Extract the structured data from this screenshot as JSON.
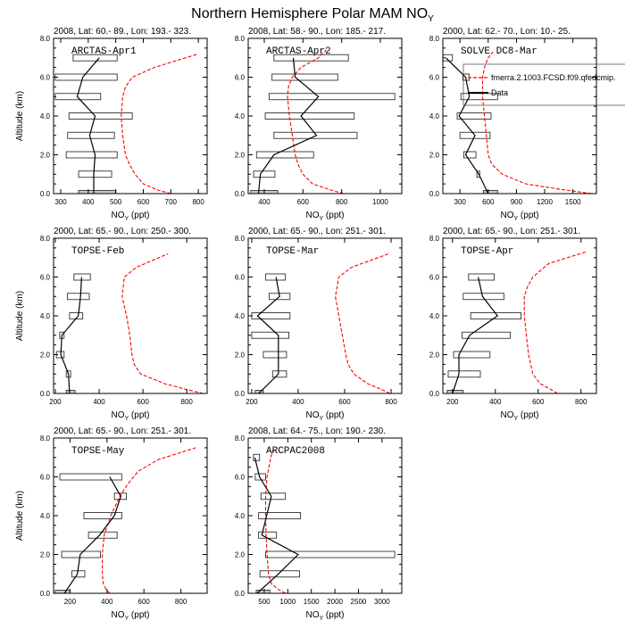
{
  "title": "Northern Hemisphere Polar MAM NO",
  "title_sub": "Y",
  "colors": {
    "model": "#ff0000",
    "data": "#000000",
    "box_bottom": "#c8c8c8"
  },
  "chart_data": [
    {
      "type": "line",
      "subtitle": "2008, Lat:  60.- 89., Lon: 193.- 323.",
      "label": "ARCTAS-Apr1",
      "xlabel": "NO",
      "xlabel_sub": "Y",
      "xlabel_unit": " (ppt)",
      "ylabel": "Altitude (km)",
      "xlim": [
        274,
        832
      ],
      "ylim": [
        0,
        8
      ],
      "xticks": [
        300,
        400,
        500,
        600,
        700,
        800
      ],
      "yticks": [
        "0.0",
        "2.0",
        "4.0",
        "6.0",
        "8.0"
      ],
      "model": {
        "alt": [
          0,
          0.2,
          0.5,
          1,
          1.5,
          2,
          3,
          4,
          5,
          5.5,
          6,
          6.5,
          7.2
        ],
        "value": [
          700,
          650,
          600,
          570,
          550,
          535,
          525,
          520,
          525,
          535,
          560,
          640,
          800
        ]
      },
      "obs": {
        "alt": [
          0,
          1,
          2,
          3,
          4,
          5,
          6,
          7
        ],
        "median": [
          420,
          420,
          425,
          405,
          425,
          360,
          380,
          440
        ],
        "low": [
          365,
          365,
          320,
          325,
          330,
          280,
          280,
          345
        ],
        "high": [
          500,
          485,
          505,
          495,
          560,
          445,
          505,
          505
        ]
      }
    },
    {
      "type": "line",
      "subtitle": "2008, Lat:  58.- 90., Lon: 185.- 217.",
      "label": "ARCTAS-Apr2",
      "xlabel": "NO",
      "xlabel_sub": "Y",
      "xlabel_unit": " (ppt)",
      "ylabel": "",
      "xlim": [
        317,
        1111
      ],
      "ylim": [
        0,
        8
      ],
      "xticks": [
        400,
        600,
        800,
        1000
      ],
      "yticks": [
        "0.0",
        "2.0",
        "4.0",
        "6.0",
        "8.0"
      ],
      "model": {
        "alt": [
          0,
          0.2,
          0.5,
          1,
          1.5,
          2,
          3,
          4,
          5,
          5.5,
          6,
          6.5,
          7,
          7.4
        ],
        "value": [
          810,
          740,
          650,
          600,
          575,
          560,
          545,
          530,
          520,
          525,
          545,
          590,
          680,
          720
        ]
      },
      "obs": {
        "alt": [
          0,
          1,
          2,
          3,
          4,
          5,
          6,
          7
        ],
        "median": [
          370,
          380,
          450,
          670,
          590,
          680,
          560,
          550
        ],
        "low": [
          330,
          345,
          360,
          450,
          405,
          425,
          440,
          450
        ],
        "high": [
          470,
          455,
          655,
          880,
          865,
          1075,
          780,
          835
        ]
      }
    },
    {
      "type": "line",
      "subtitle": "2000, Lat: 62.- 70., Lon: 10.- 25.",
      "label": "SOLVE DC8-Mar",
      "xlabel": "NO",
      "xlabel_sub": "Y",
      "xlabel_unit": " (ppt)",
      "ylabel": "",
      "xlim": [
        118,
        1750
      ],
      "ylim": [
        0,
        8
      ],
      "xticks": [
        300,
        600,
        900,
        1200,
        1500
      ],
      "yticks": [
        "0.0",
        "2.0",
        "4.0",
        "6.0",
        "8.0"
      ],
      "model": {
        "alt": [
          0,
          0.2,
          0.5,
          1,
          1.5,
          2,
          3,
          4,
          5,
          6,
          6.5,
          7,
          7.3
        ],
        "value": [
          1700,
          1400,
          1000,
          750,
          640,
          600,
          580,
          560,
          540,
          540,
          560,
          600,
          650
        ]
      },
      "obs": {
        "alt": [
          0,
          1,
          2,
          3,
          4,
          5,
          6,
          7
        ],
        "median": [
          600,
          500,
          360,
          460,
          290,
          400,
          360,
          150
        ],
        "low": [
          550,
          480,
          340,
          300,
          270,
          310,
          330,
          120
        ],
        "high": [
          700,
          510,
          470,
          620,
          630,
          700,
          400,
          220
        ]
      },
      "legend": {
        "model_label": "fmerra.2.1003.FCSD.f09.qfedcmip.",
        "data_label": "Data"
      }
    },
    {
      "type": "line",
      "subtitle": "2000, Lat: 65.- 90., Lon: 250.- 300.",
      "label": "TOPSE-Feb",
      "xlabel": "NO",
      "xlabel_sub": "Y",
      "xlabel_unit": " (ppt)",
      "ylabel": "Altitude (km)",
      "xlim": [
        192,
        893
      ],
      "ylim": [
        0,
        8
      ],
      "xticks": [
        200,
        400,
        600,
        800
      ],
      "yticks": [
        "0.0",
        "2.0",
        "4.0",
        "6.0",
        "8.0"
      ],
      "model": {
        "alt": [
          0,
          0.2,
          0.5,
          1,
          1.5,
          2,
          3,
          4,
          5,
          6,
          6.5,
          7.2
        ],
        "value": [
          875,
          800,
          700,
          590,
          560,
          550,
          540,
          525,
          505,
          515,
          570,
          715
        ]
      },
      "obs": {
        "alt": [
          0,
          1,
          2,
          3,
          4,
          5,
          6
        ],
        "median": [
          265,
          260,
          225,
          230,
          305,
          315,
          320
        ],
        "low": [
          250,
          250,
          205,
          220,
          265,
          255,
          285
        ],
        "high": [
          290,
          270,
          240,
          240,
          325,
          355,
          360
        ]
      }
    },
    {
      "type": "line",
      "subtitle": "2000, Lat: 65.- 90., Lon: 251.- 301.",
      "label": "TOPSE-Mar",
      "xlabel": "NO",
      "xlabel_sub": "Y",
      "xlabel_unit": " (ppt)",
      "ylabel": "",
      "xlim": [
        185,
        846
      ],
      "ylim": [
        0,
        8
      ],
      "xticks": [
        200,
        400,
        600,
        800
      ],
      "yticks": [
        "0.0",
        "2.0",
        "4.0",
        "6.0",
        "8.0"
      ],
      "model": {
        "alt": [
          0,
          0.2,
          0.5,
          1,
          1.5,
          2,
          3,
          4,
          5,
          6,
          6.5,
          7.2
        ],
        "value": [
          795,
          760,
          700,
          640,
          615,
          605,
          590,
          575,
          560,
          575,
          630,
          790
        ]
      },
      "obs": {
        "alt": [
          0,
          1,
          2,
          3,
          4,
          5,
          6
        ],
        "median": [
          230,
          315,
          315,
          315,
          225,
          320,
          305
        ],
        "low": [
          215,
          290,
          250,
          200,
          200,
          275,
          260
        ],
        "high": [
          250,
          350,
          350,
          360,
          365,
          365,
          345
        ]
      }
    },
    {
      "type": "line",
      "subtitle": "2000, Lat: 65.- 90., Lon: 251.- 301.",
      "label": "TOPSE-Apr",
      "xlabel": "NO",
      "xlabel_sub": "Y",
      "xlabel_unit": " (ppt)",
      "ylabel": "",
      "xlim": [
        155,
        872
      ],
      "ylim": [
        0,
        8
      ],
      "xticks": [
        200,
        400,
        600,
        800
      ],
      "yticks": [
        "0.0",
        "2.0",
        "4.0",
        "6.0",
        "8.0"
      ],
      "model": {
        "alt": [
          0,
          0.2,
          0.5,
          1,
          2,
          3,
          4,
          5,
          5.5,
          6,
          6.7,
          7.3
        ],
        "value": [
          690,
          660,
          610,
          575,
          555,
          545,
          535,
          535,
          550,
          575,
          650,
          825
        ]
      },
      "obs": {
        "alt": [
          0,
          1,
          2,
          3,
          4,
          5,
          6
        ],
        "median": [
          200,
          230,
          230,
          280,
          410,
          340,
          320
        ],
        "low": [
          175,
          180,
          205,
          245,
          285,
          250,
          275
        ],
        "high": [
          250,
          330,
          375,
          470,
          520,
          440,
          395
        ]
      }
    },
    {
      "type": "line",
      "subtitle": "2000, Lat: 65.- 90., Lon: 251.- 301.",
      "label": "TOPSE-May",
      "xlabel": "NO",
      "xlabel_sub": "Y",
      "xlabel_unit": " (ppt)",
      "ylabel": "Altitude (km)",
      "xlim": [
        111,
        942
      ],
      "ylim": [
        0,
        8
      ],
      "xticks": [
        200,
        400,
        600,
        800
      ],
      "yticks": [
        "0.0",
        "2.0",
        "4.0",
        "6.0",
        "8.0"
      ],
      "model": {
        "alt": [
          0,
          0.2,
          0.5,
          1,
          2,
          3,
          4,
          5,
          5.6,
          6.3,
          6.9,
          7.5
        ],
        "value": [
          415,
          395,
          380,
          375,
          375,
          385,
          420,
          470,
          510,
          570,
          680,
          880
        ]
      },
      "obs": {
        "alt": [
          0,
          1,
          2,
          3,
          4,
          5,
          6
        ],
        "median": [
          170,
          240,
          255,
          360,
          440,
          475,
          415
        ],
        "low": [
          120,
          210,
          155,
          300,
          275,
          440,
          145
        ],
        "high": [
          200,
          280,
          365,
          455,
          480,
          505,
          480
        ]
      }
    },
    {
      "type": "line",
      "subtitle": "2008, Lat: 64.- 75., Lon: 190.- 230.",
      "label": "ARCPAC2008",
      "xlabel": "NO",
      "xlabel_sub": "Y",
      "xlabel_unit": " (ppt)",
      "ylabel": "",
      "xlim": [
        160,
        3420
      ],
      "ylim": [
        0,
        8
      ],
      "xticks": [
        500,
        1000,
        1500,
        2000,
        2500,
        3000
      ],
      "yticks": [
        "0.0",
        "2.0",
        "4.0",
        "6.0",
        "8.0"
      ],
      "model": {
        "alt": [
          0,
          0.2,
          0.5,
          1,
          2,
          3,
          4,
          5,
          6,
          6.5,
          7,
          7.4
        ],
        "value": [
          950,
          800,
          650,
          590,
          560,
          540,
          530,
          530,
          560,
          600,
          640,
          690
        ]
      },
      "obs": {
        "alt": [
          0,
          1,
          2,
          3,
          4,
          5,
          6,
          7
        ],
        "median": [
          350,
          800,
          1220,
          450,
          550,
          650,
          400,
          300
        ],
        "low": [
          330,
          410,
          530,
          380,
          380,
          430,
          310,
          270
        ],
        "high": [
          620,
          1250,
          3270,
          760,
          1270,
          950,
          530,
          400
        ]
      }
    }
  ]
}
